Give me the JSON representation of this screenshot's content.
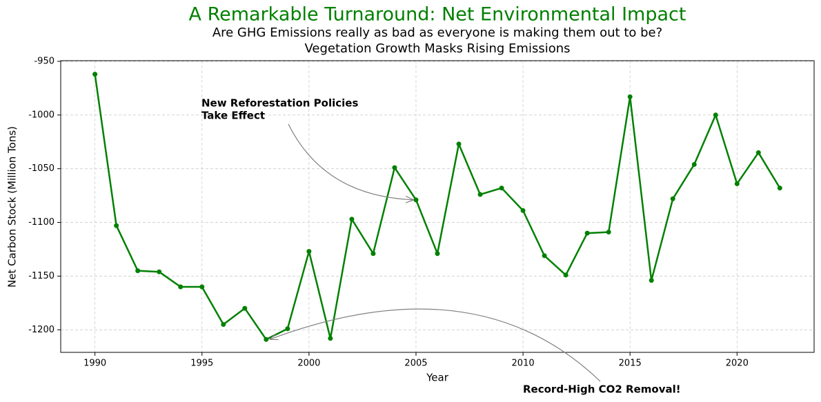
{
  "chart_data": {
    "type": "line",
    "title": "A Remarkable Turnaround: Net Environmental Impact",
    "subtitle": [
      "Are GHG Emissions really as bad as everyone is making them out to be?",
      "Vegetation Growth Masks Rising Emissions"
    ],
    "x_label": "Year",
    "y_label": "Net Carbon Stock (Million Tons)",
    "x": [
      1990,
      1991,
      1992,
      1993,
      1994,
      1995,
      1996,
      1997,
      1998,
      1999,
      2000,
      2001,
      2002,
      2003,
      2004,
      2005,
      2006,
      2007,
      2008,
      2009,
      2010,
      2011,
      2012,
      2013,
      2014,
      2015,
      2016,
      2017,
      2018,
      2019,
      2020,
      2021,
      2022
    ],
    "series": [
      {
        "name": "Net Carbon Stock",
        "color": "#008000",
        "values": [
          -962,
          -1103,
          -1145,
          -1146,
          -1160,
          -1160,
          -1195,
          -1180,
          -1209,
          -1199,
          -1127,
          -1208,
          -1097,
          -1129,
          -1049,
          -1079,
          -1129,
          -1027,
          -1074,
          -1068,
          -1089,
          -1131,
          -1149,
          -1110,
          -1109,
          -983,
          -1154,
          -1078,
          -1046,
          -1000,
          -1064,
          -1035,
          -1068
        ]
      }
    ],
    "xlim": [
      1988.4,
      2023.6
    ],
    "ylim": [
      -1221,
      -949.4
    ],
    "xticks": [
      1990,
      1995,
      2000,
      2005,
      2010,
      2015,
      2020
    ],
    "yticks": [
      -950,
      -1000,
      -1050,
      -1100,
      -1150,
      -1200
    ],
    "grid": true,
    "annotations": [
      {
        "text": [
          "New Reforestation Policies",
          "Take Effect"
        ],
        "x": 2005,
        "y": -1079
      },
      {
        "text": [
          "Record-High CO2 Removal!"
        ],
        "x": 1998,
        "y": -1209
      }
    ]
  }
}
